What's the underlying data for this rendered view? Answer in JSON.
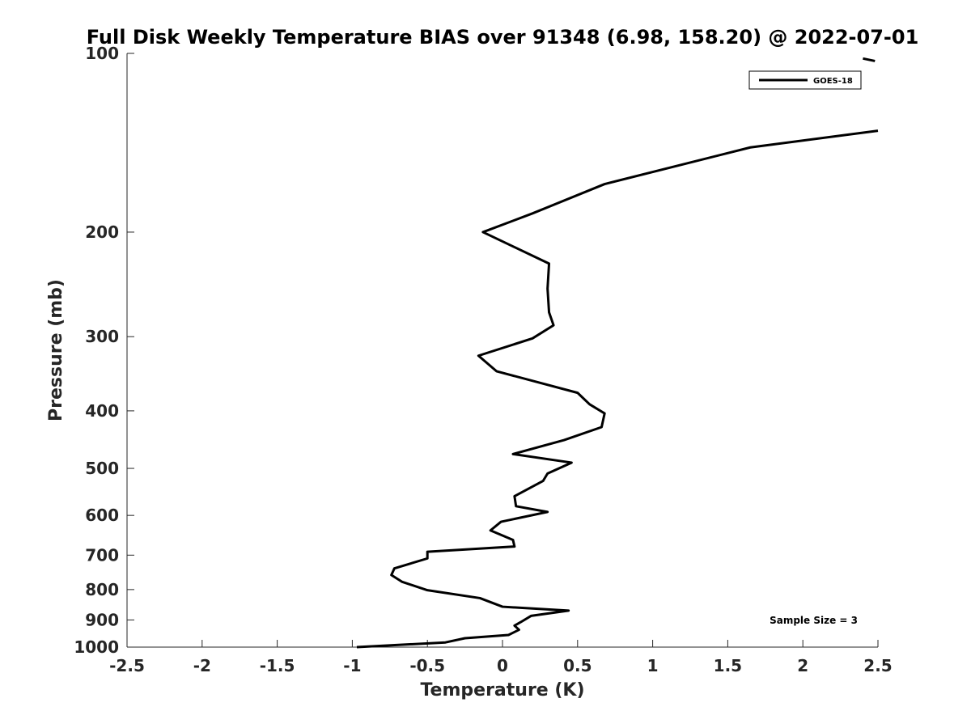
{
  "chart_data": {
    "type": "line",
    "title": "Full Disk Weekly Temperature BIAS over 91348 (6.98, 158.20) @ 2022-07-01",
    "xlabel": "Temperature (K)",
    "ylabel": "Pressure (mb)",
    "xlim": [
      -2.5,
      2.5
    ],
    "ylim": [
      100,
      1000
    ],
    "y_scale": "log",
    "y_reversed": true,
    "grid": false,
    "legend_position": "top-right",
    "x_ticks": [
      "-2.5",
      "-2",
      "-1.5",
      "-1",
      "-0.5",
      "0",
      "0.5",
      "1",
      "1.5",
      "2",
      "2.5"
    ],
    "y_ticks": [
      "100",
      "200",
      "300",
      "400",
      "500",
      "600",
      "700",
      "800",
      "900",
      "1000"
    ],
    "series": [
      {
        "name": "GOES-18",
        "color": "#000000",
        "points": [
          {
            "x": 2.4,
            "y": 102
          },
          {
            "x": 2.48,
            "y": 103
          },
          {
            "x": 2.5,
            "y": 135
          },
          {
            "x": 1.65,
            "y": 144
          },
          {
            "x": 0.68,
            "y": 166
          },
          {
            "x": 0.2,
            "y": 186
          },
          {
            "x": -0.13,
            "y": 200
          },
          {
            "x": 0.31,
            "y": 226
          },
          {
            "x": 0.3,
            "y": 249
          },
          {
            "x": 0.31,
            "y": 273
          },
          {
            "x": 0.34,
            "y": 287
          },
          {
            "x": 0.2,
            "y": 302
          },
          {
            "x": -0.16,
            "y": 323
          },
          {
            "x": -0.04,
            "y": 343
          },
          {
            "x": 0.5,
            "y": 373
          },
          {
            "x": 0.58,
            "y": 390
          },
          {
            "x": 0.68,
            "y": 404
          },
          {
            "x": 0.66,
            "y": 426
          },
          {
            "x": 0.41,
            "y": 448
          },
          {
            "x": 0.07,
            "y": 473
          },
          {
            "x": 0.46,
            "y": 489
          },
          {
            "x": 0.3,
            "y": 510
          },
          {
            "x": 0.27,
            "y": 525
          },
          {
            "x": 0.08,
            "y": 557
          },
          {
            "x": 0.09,
            "y": 579
          },
          {
            "x": 0.3,
            "y": 592
          },
          {
            "x": -0.01,
            "y": 615
          },
          {
            "x": -0.08,
            "y": 636
          },
          {
            "x": 0.07,
            "y": 660
          },
          {
            "x": 0.08,
            "y": 677
          },
          {
            "x": -0.5,
            "y": 691
          },
          {
            "x": -0.5,
            "y": 709
          },
          {
            "x": -0.72,
            "y": 737
          },
          {
            "x": -0.74,
            "y": 756
          },
          {
            "x": -0.67,
            "y": 776
          },
          {
            "x": -0.5,
            "y": 802
          },
          {
            "x": -0.15,
            "y": 827
          },
          {
            "x": 0.0,
            "y": 855
          },
          {
            "x": 0.44,
            "y": 868
          },
          {
            "x": 0.19,
            "y": 886
          },
          {
            "x": 0.12,
            "y": 908
          },
          {
            "x": 0.08,
            "y": 920
          },
          {
            "x": 0.11,
            "y": 935
          },
          {
            "x": 0.04,
            "y": 954
          },
          {
            "x": -0.25,
            "y": 966
          },
          {
            "x": -0.38,
            "y": 982
          },
          {
            "x": -0.97,
            "y": 1000
          }
        ]
      }
    ],
    "annotation": "Sample Size = 3"
  }
}
